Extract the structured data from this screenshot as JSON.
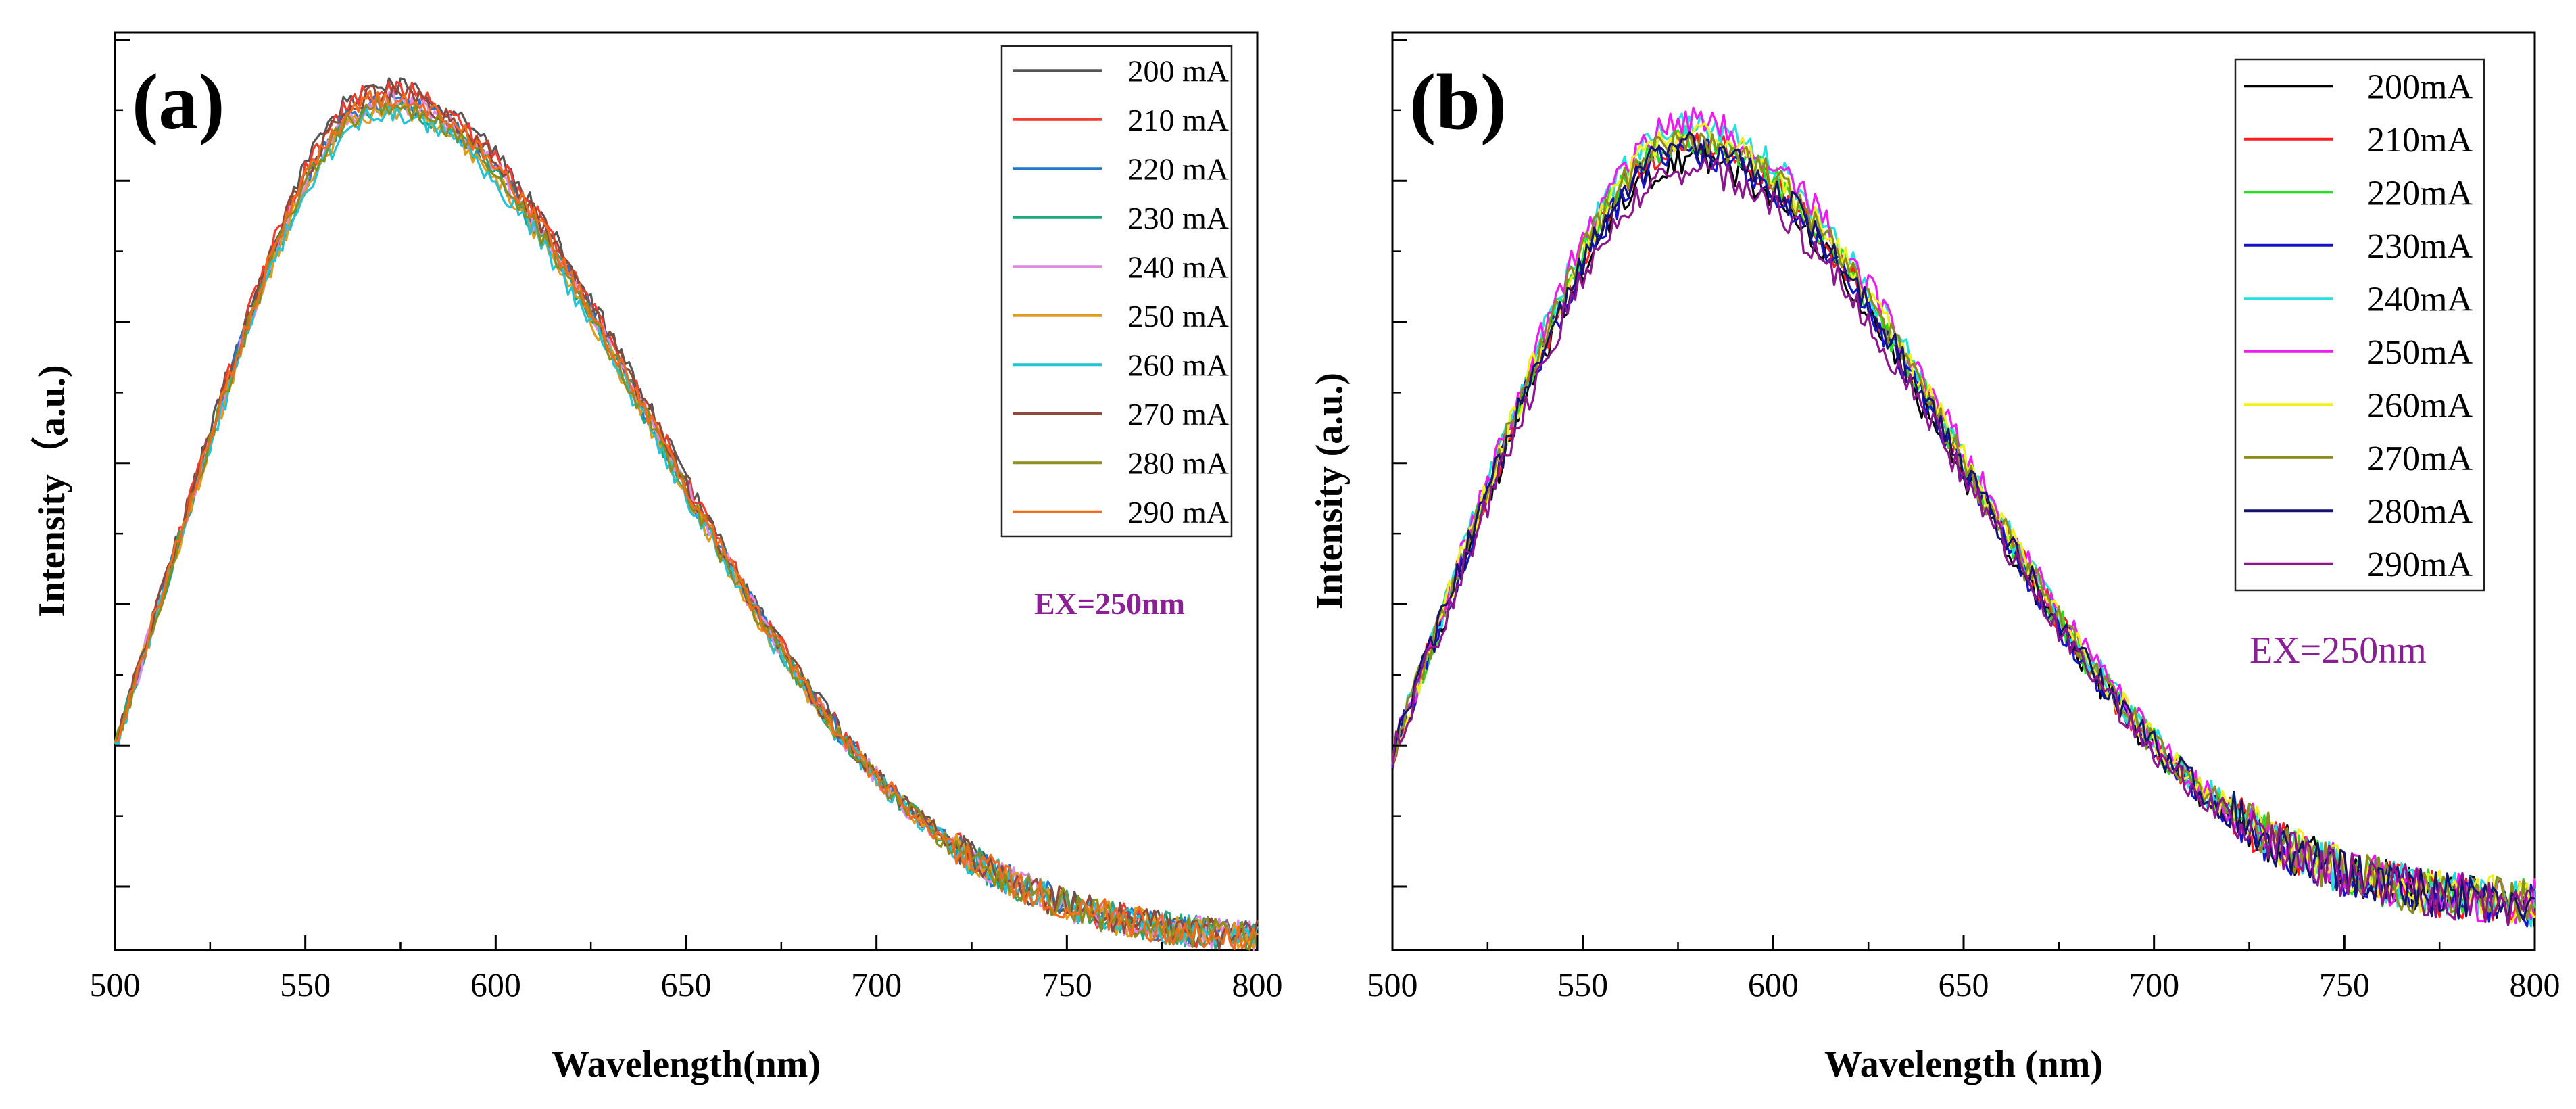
{
  "chart_data": [
    {
      "type": "line",
      "panel_label": "(a)",
      "xlabel": "Wavelength(nm)",
      "ylabel": "Intensity（a.u.)",
      "xlim": [
        500,
        800
      ],
      "ylim": [
        0,
        1.08
      ],
      "x_ticks": [
        500,
        550,
        600,
        650,
        700,
        750,
        800
      ],
      "x_tick_labels": [
        "500",
        "550",
        "600",
        "650",
        "700",
        "750",
        "800"
      ],
      "y_tick_labels": [],
      "annotation": "EX=250nm",
      "annotation_color": "#8B2096",
      "legend_position": "top-right",
      "shape": {
        "start": 0.18,
        "peak_x": 570,
        "peak": 1.0,
        "left_width": 42,
        "right_width": 72,
        "tail": 0.01,
        "noise": 0.012
      },
      "series": [
        {
          "name": "200 mA",
          "color": "#555555",
          "peak": 1.02
        },
        {
          "name": "210 mA",
          "color": "#F23A2E",
          "peak": 1.015
        },
        {
          "name": "220 mA",
          "color": "#1F77D0",
          "peak": 1.0
        },
        {
          "name": "230 mA",
          "color": "#1FA67A",
          "peak": 0.995
        },
        {
          "name": "240 mA",
          "color": "#E08AE6",
          "peak": 1.0
        },
        {
          "name": "250 mA",
          "color": "#E09B1A",
          "peak": 0.99
        },
        {
          "name": "260 mA",
          "color": "#22C3D4",
          "peak": 0.985
        },
        {
          "name": "270 mA",
          "color": "#8B4A3A",
          "peak": 1.01
        },
        {
          "name": "280 mA",
          "color": "#8C8C1A",
          "peak": 0.995
        },
        {
          "name": "290 mA",
          "color": "#F26A1B",
          "peak": 1.005
        }
      ]
    },
    {
      "type": "line",
      "panel_label": "(b)",
      "xlabel": "Wavelength (nm)",
      "ylabel": "Intensity (a.u.)",
      "xlim": [
        500,
        800
      ],
      "ylim": [
        0,
        1.08
      ],
      "x_ticks": [
        500,
        550,
        600,
        650,
        700,
        750,
        800
      ],
      "x_tick_labels": [
        "500",
        "550",
        "600",
        "650",
        "700",
        "750",
        "800"
      ],
      "y_tick_labels": [],
      "annotation": "EX=250nm",
      "annotation_color": "#8B2096",
      "legend_position": "top-right",
      "shape": {
        "start": 0.18,
        "peak_x": 577,
        "peak": 0.95,
        "left_width": 45,
        "right_width": 70,
        "tail": 0.05,
        "noise": 0.018
      },
      "series": [
        {
          "name": "200mA",
          "color": "#000000",
          "peak": 0.93
        },
        {
          "name": "210mA",
          "color": "#FF1A1A",
          "peak": 0.95
        },
        {
          "name": "220mA",
          "color": "#22E022",
          "peak": 0.955
        },
        {
          "name": "230mA",
          "color": "#1414C8",
          "peak": 0.94
        },
        {
          "name": "240mA",
          "color": "#22E0E0",
          "peak": 0.97
        },
        {
          "name": "250mA",
          "color": "#F01AF0",
          "peak": 0.975
        },
        {
          "name": "260mA",
          "color": "#F0F01A",
          "peak": 0.96
        },
        {
          "name": "270mA",
          "color": "#8C8C1A",
          "peak": 0.955
        },
        {
          "name": "280mA",
          "color": "#14146E",
          "peak": 0.945
        },
        {
          "name": "290mA",
          "color": "#8C148C",
          "peak": 0.92
        }
      ]
    }
  ]
}
